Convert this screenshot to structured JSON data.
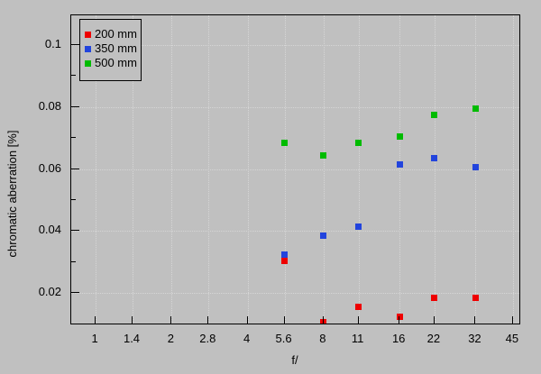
{
  "chart_data": {
    "type": "scatter",
    "title": "",
    "xlabel": "f/",
    "ylabel": "chromatic aberration [%]",
    "xscale": "log",
    "xlim": [
      0.8,
      48.5
    ],
    "ylim": [
      0.0096,
      0.1096
    ],
    "x_ticks": {
      "values": [
        1,
        1.4,
        2,
        2.8,
        4,
        5.6,
        8,
        11,
        16,
        22,
        32,
        45
      ],
      "labels": [
        "1",
        "1.4",
        "2",
        "2.8",
        "4",
        "5.6",
        "8",
        "11",
        "16",
        "22",
        "32",
        "45"
      ]
    },
    "y_ticks": {
      "values": [
        0.02,
        0.04,
        0.06,
        0.08,
        0.1
      ],
      "labels": [
        "0.02",
        "0.04",
        "0.06",
        "0.08",
        "0.1"
      ]
    },
    "y_minor_ticks": [
      0.03,
      0.05,
      0.07,
      0.09
    ],
    "grid": "dotted-at-major-ticks",
    "legend_position": "top-left-inside",
    "marker": "square",
    "marker_size_px": 7,
    "x": [
      5.6,
      8,
      11,
      16,
      22,
      32
    ],
    "series": [
      {
        "name": "200 mm",
        "color": "#ee0000",
        "values": [
          0.0305,
          0.0105,
          0.0155,
          0.0125,
          0.0185,
          0.0185
        ]
      },
      {
        "name": "350 mm",
        "color": "#2244dd",
        "values": [
          0.0325,
          0.0385,
          0.0415,
          0.0615,
          0.0635,
          0.0605
        ]
      },
      {
        "name": "500 mm",
        "color": "#00bb00",
        "values": [
          0.0685,
          0.0645,
          0.0685,
          0.0705,
          0.0775,
          0.0795
        ]
      }
    ]
  },
  "colors": {
    "background": "#c0c0c0",
    "axis": "#000000",
    "grid": "#d6d6d6",
    "text": "#000000"
  }
}
